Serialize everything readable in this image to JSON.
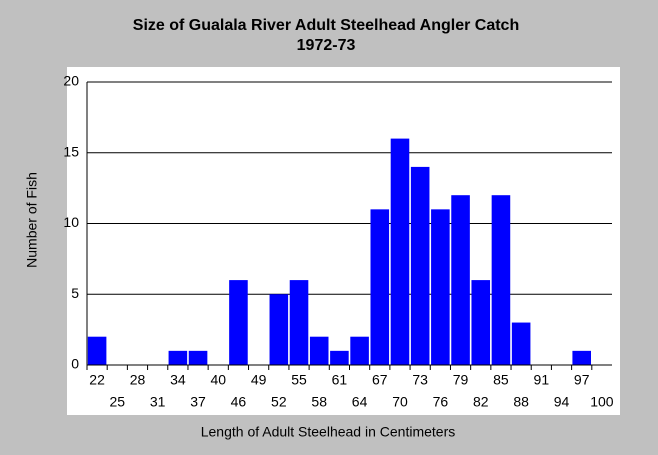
{
  "chart_data": {
    "type": "bar",
    "title": "Size of Gualala River Adult Steelhead Angler Catch",
    "subtitle": "1972-73",
    "x_label": "Length of Adult Steelhead in Centimeters",
    "y_label": "Number of Fish",
    "categories": [
      "22",
      "25",
      "28",
      "31",
      "34",
      "37",
      "40",
      "46",
      "49",
      "52",
      "55",
      "58",
      "61",
      "64",
      "67",
      "70",
      "73",
      "76",
      "79",
      "82",
      "85",
      "88",
      "91",
      "94",
      "97",
      "100"
    ],
    "values": [
      2,
      0,
      0,
      0,
      1,
      1,
      0,
      6,
      0,
      5,
      6,
      2,
      1,
      2,
      11,
      16,
      14,
      11,
      12,
      6,
      12,
      3,
      0,
      0,
      1,
      0
    ],
    "color": "#0000ff",
    "ylim": [
      0,
      20
    ],
    "yticks": [
      0,
      5,
      10,
      15,
      20
    ],
    "grid": true
  }
}
